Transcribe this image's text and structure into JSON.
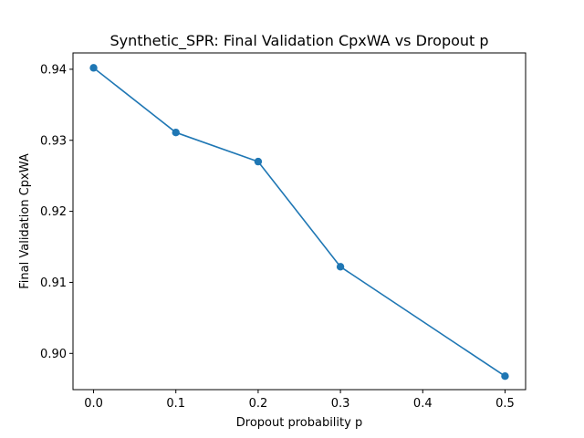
{
  "chart_data": {
    "type": "line",
    "title": "Synthetic_SPR: Final Validation CpxWA vs Dropout p",
    "xlabel": "Dropout probability p",
    "ylabel": "Final Validation CpxWA",
    "x": [
      0.0,
      0.1,
      0.2,
      0.3,
      0.5
    ],
    "series": [
      {
        "values": [
          0.9402,
          0.9311,
          0.927,
          0.9122,
          0.8968
        ],
        "color": "#1f77b4",
        "marker": "circle"
      }
    ],
    "xlim": [
      -0.025,
      0.525
    ],
    "ylim": [
      0.8949,
      0.9423
    ],
    "xticks": [
      0.0,
      0.1,
      0.2,
      0.3,
      0.4,
      0.5
    ],
    "xtick_labels": [
      "0.0",
      "0.1",
      "0.2",
      "0.3",
      "0.4",
      "0.5"
    ],
    "yticks": [
      0.9,
      0.91,
      0.92,
      0.93,
      0.94
    ],
    "ytick_labels": [
      "0.90",
      "0.91",
      "0.92",
      "0.93",
      "0.94"
    ],
    "grid": false,
    "legend": "none"
  }
}
